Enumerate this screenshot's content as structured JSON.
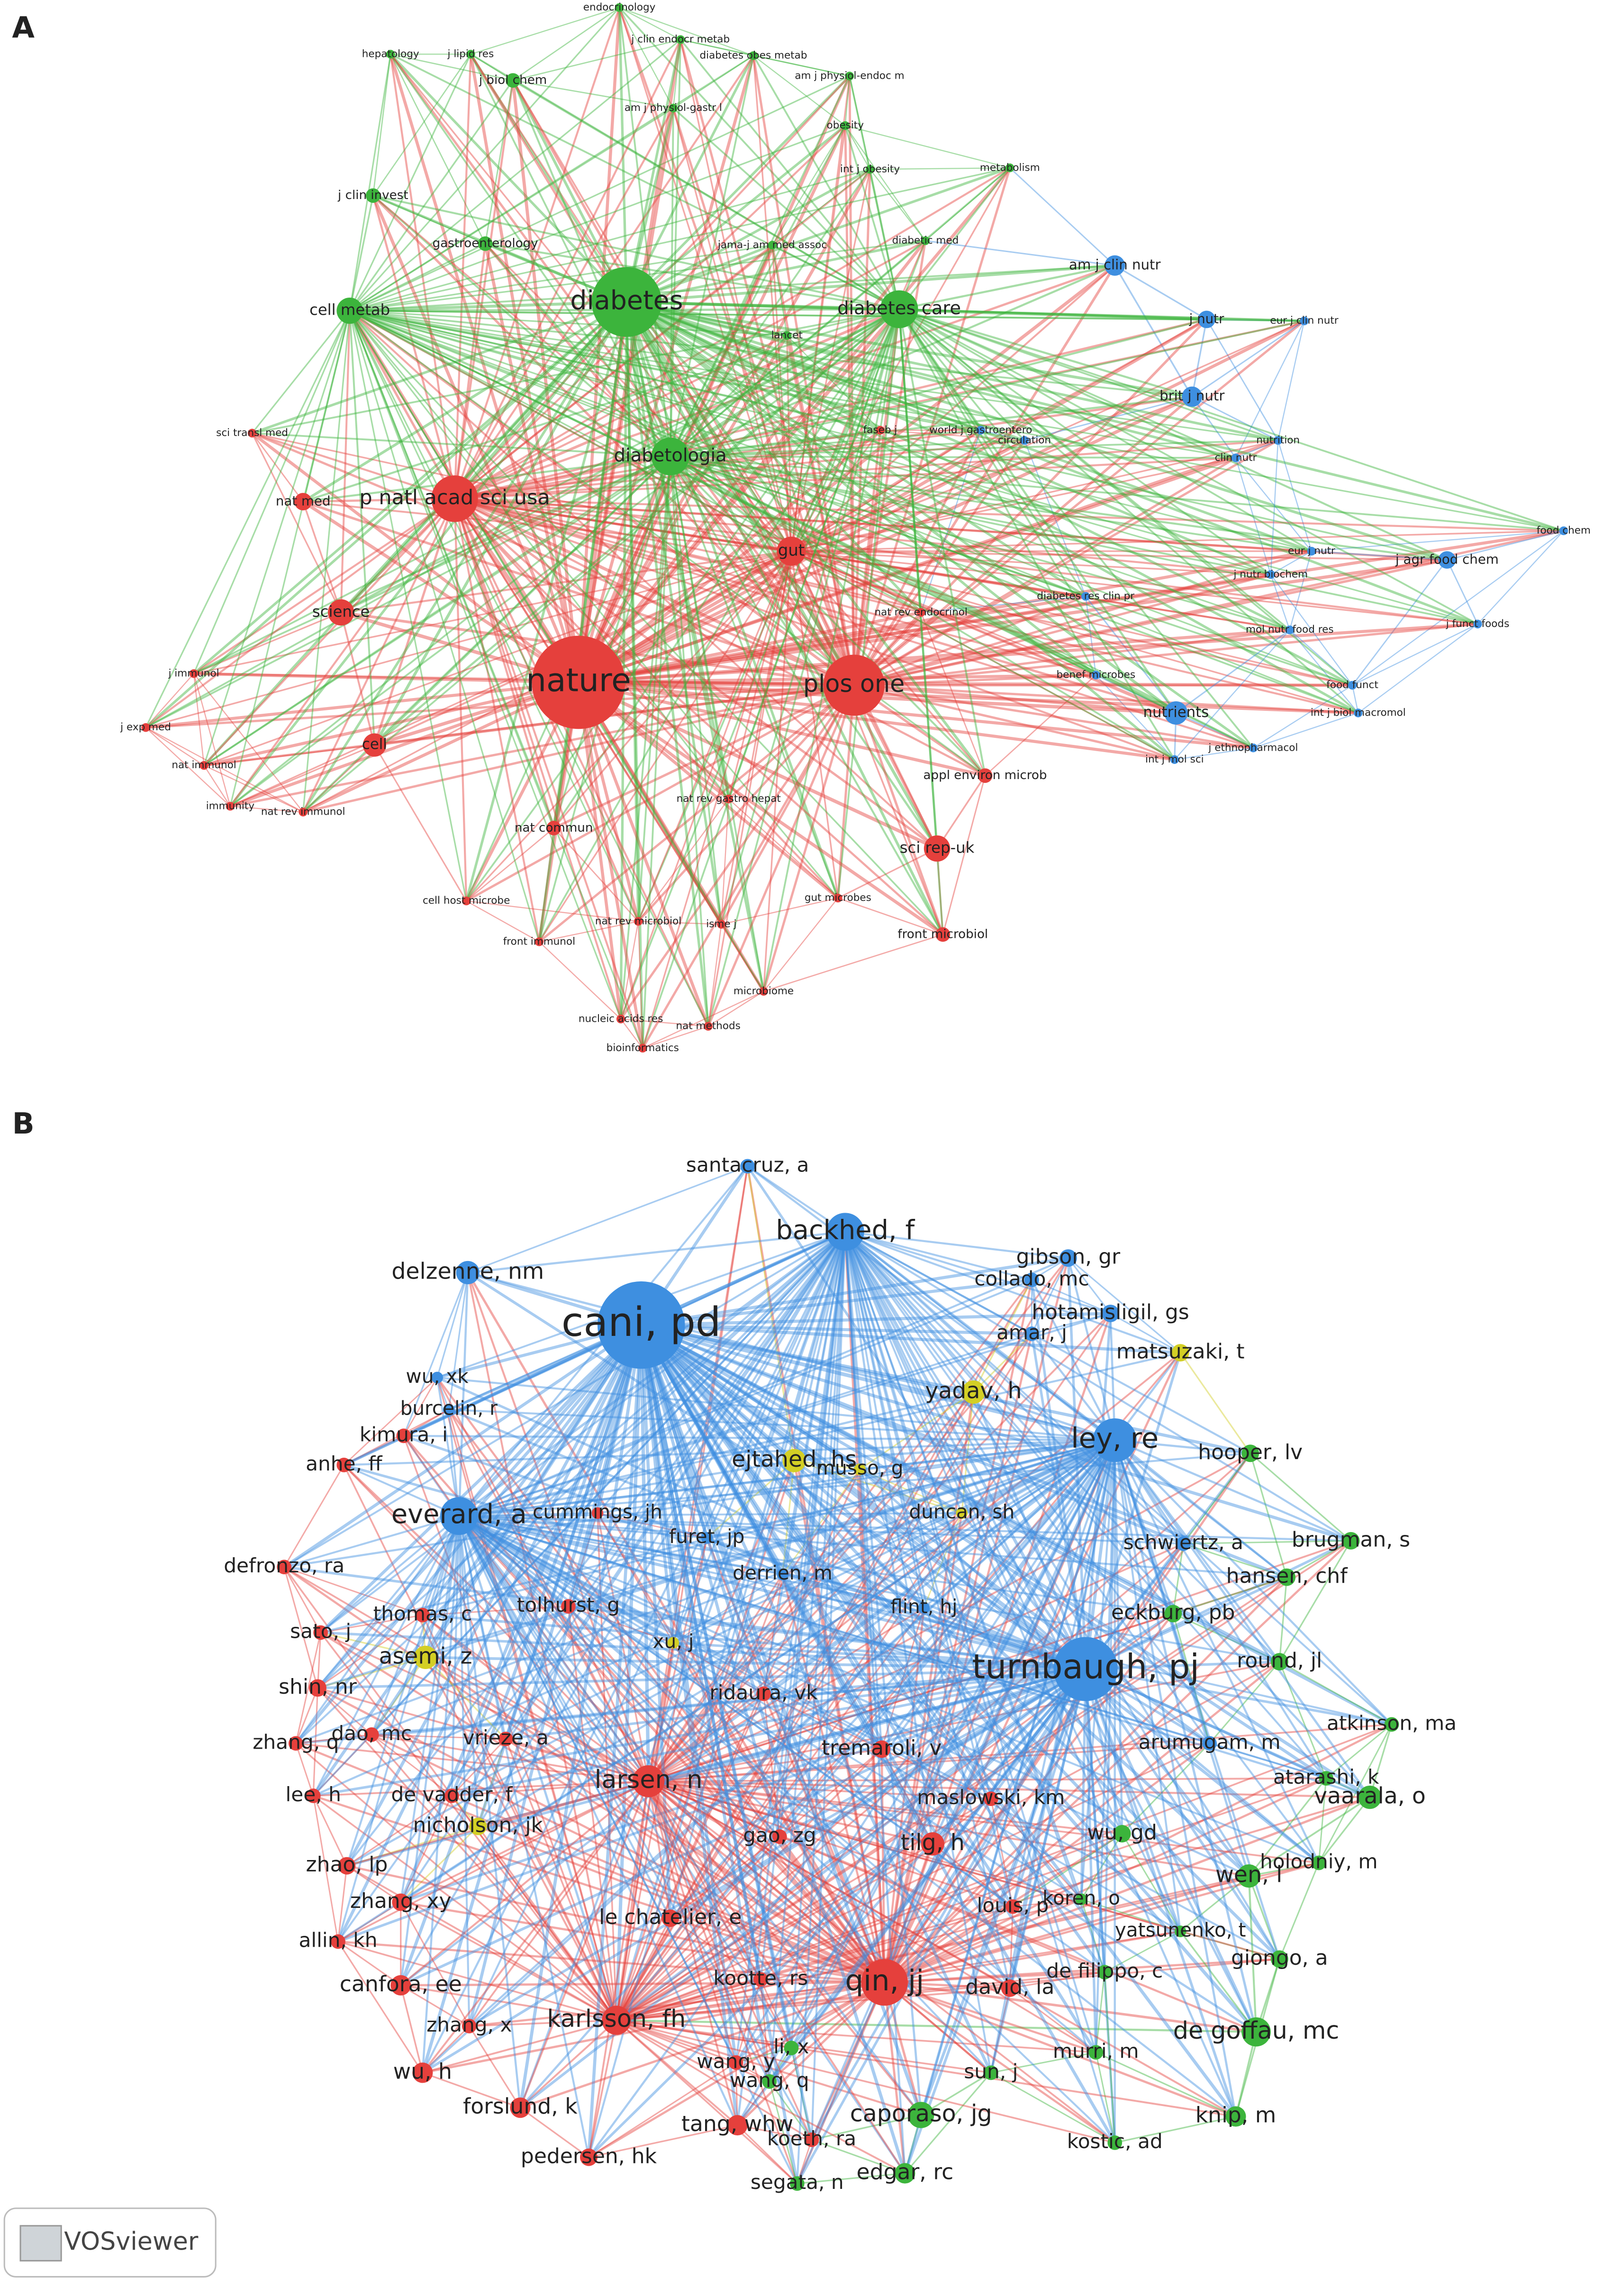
{
  "panels": [
    {
      "label": "A",
      "nodes": [
        "endocrinology",
        "hepatology",
        "j lipid res",
        "j biol chem",
        "j clin endocr metab",
        "diabetes obes metab",
        "am j physiol-endoc m",
        "am j physiol-gastr l",
        "obesity",
        "int j obesity",
        "metabolism",
        "j clin invest",
        "gastroenterology",
        "jama-j am med assoc",
        "diabetic med",
        "am j clin nutr",
        "cell metab",
        "diabetes",
        "diabetes care",
        "j nutr",
        "eur j clin nutr",
        "lancet",
        "brit j nutr",
        "sci transl med",
        "faseb j",
        "world j gastroentero",
        "circulation",
        "nutrition",
        "clin nutr",
        "diabetologia",
        "nat med",
        "p natl acad sci usa",
        "gut",
        "food chem",
        "eur j nutr",
        "j agr food chem",
        "j nutr biochem",
        "diabetes res clin pr",
        "nat rev endocrinol",
        "science",
        "j funct foods",
        "mol nutr food res",
        "j immunol",
        "benef microbes",
        "nature",
        "plos one",
        "food funct",
        "int j biol macromol",
        "nutrients",
        "j exp med",
        "cell",
        "j ethnopharmacol",
        "int j mol sci",
        "nat immunol",
        "appl environ microb",
        "immunity",
        "nat rev immunol",
        "nat rev gastro hepat",
        "nat commun",
        "sci rep-uk",
        "cell host microbe",
        "gut microbes",
        "nat rev microbiol",
        "isme j",
        "front microbiol",
        "front immunol",
        "microbiome",
        "nucleic acids res",
        "nat methods",
        "bioinformatics"
      ]
    },
    {
      "label": "B",
      "nodes": [
        "santacruz, a",
        "backhed, f",
        "delzenne, nm",
        "gibson, gr",
        "cani, pd",
        "collado, mc",
        "hotamisligil, gs",
        "amar, j",
        "matsuzaki, t",
        "wu, xk",
        "yadav, h",
        "burcelin, r",
        "kimura, i",
        "ley, re",
        "hooper, lv",
        "anhe, ff",
        "ejtahed, hs",
        "musso, g",
        "everard, a",
        "cummings, jh",
        "duncan, sh",
        "furet, jp",
        "brugman, s",
        "schwiertz, a",
        "defronzo, ra",
        "hansen, chf",
        "derrien, m",
        "thomas, c",
        "tolhurst, g",
        "flint, hj",
        "eckburg, pb",
        "sato, j",
        "asemi, z",
        "xu, j",
        "round, jl",
        "turnbaugh, pj",
        "shin, nr",
        "ridaura, vk",
        "zhang, q",
        "dao, mc",
        "vrieze, a",
        "tremaroli, v",
        "atkinson, ma",
        "arumugam, m",
        "atarashi, k",
        "lee, h",
        "larsen, n",
        "de vadder, f",
        "vaarala, o",
        "maslowski, km",
        "nicholson, jk",
        "gao, zg",
        "wu, gd",
        "tilg, h",
        "zhao, lp",
        "wen, l",
        "holodniy, m",
        "louis, p",
        "koren, o",
        "zhang, xy",
        "le chatelier, e",
        "yatsunenko, t",
        "allin, kh",
        "giongo, a",
        "canfora, ee",
        "kootte, rs",
        "qin, jj",
        "david, la",
        "de filippo, c",
        "karlsson, fh",
        "zhang, x",
        "de goffau, mc",
        "murri, m",
        "wu, h",
        "sun, j",
        "li, x",
        "wang, y",
        "wang, q",
        "caporaso, jg",
        "forslund, k",
        "knip, m",
        "tang, whw",
        "koeth, ra",
        "pedersen, hk",
        "kostic, ad",
        "edgar, rc",
        "segata, n"
      ]
    }
  ],
  "watermark": "VOSviewer"
}
